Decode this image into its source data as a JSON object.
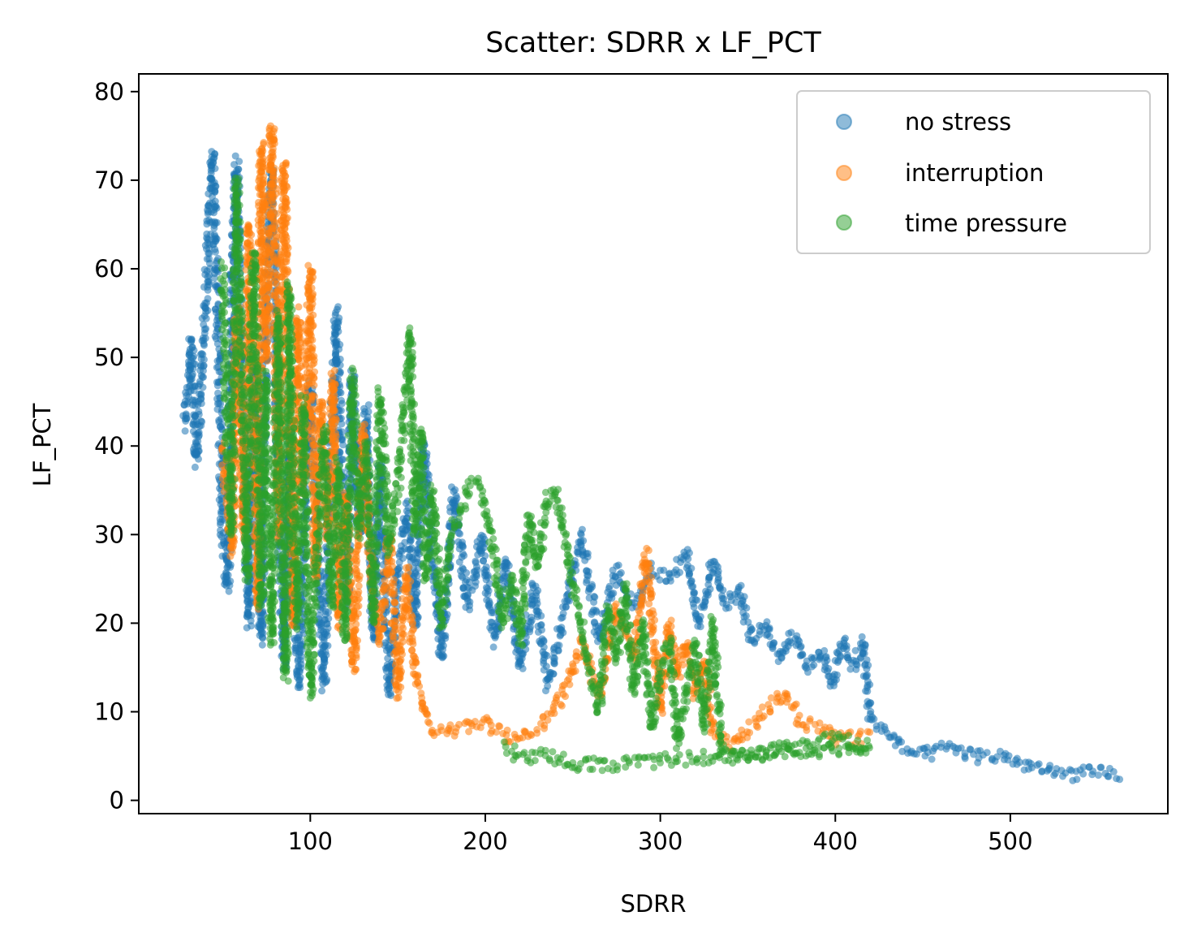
{
  "chart_data": {
    "type": "scatter",
    "title": "Scatter: SDRR x LF_PCT",
    "xlabel": "SDRR",
    "ylabel": "LF_PCT",
    "xlim": [
      2,
      590
    ],
    "ylim": [
      -1.5,
      82
    ],
    "xticks": [
      100,
      200,
      300,
      400,
      500
    ],
    "yticks": [
      0,
      10,
      20,
      30,
      40,
      50,
      60,
      70,
      80
    ],
    "grid": false,
    "legend_position": "top-right",
    "series": [
      {
        "name": "no stress",
        "color": "#1f77b4",
        "path": [
          [
            28,
            42
          ],
          [
            32,
            52
          ],
          [
            35,
            38
          ],
          [
            40,
            55
          ],
          [
            44,
            73
          ],
          [
            46,
            62
          ],
          [
            48,
            45
          ],
          [
            50,
            30
          ],
          [
            53,
            24
          ],
          [
            56,
            65
          ],
          [
            58,
            72
          ],
          [
            60,
            54
          ],
          [
            62,
            40
          ],
          [
            65,
            20
          ],
          [
            68,
            50
          ],
          [
            70,
            35
          ],
          [
            72,
            18
          ],
          [
            75,
            60
          ],
          [
            78,
            71
          ],
          [
            80,
            52
          ],
          [
            82,
            33
          ],
          [
            85,
            15
          ],
          [
            88,
            42
          ],
          [
            90,
            24
          ],
          [
            94,
            13
          ],
          [
            97,
            34
          ],
          [
            100,
            47
          ],
          [
            104,
            28
          ],
          [
            108,
            13
          ],
          [
            112,
            40
          ],
          [
            115,
            55
          ],
          [
            118,
            36
          ],
          [
            121,
            22
          ],
          [
            124,
            48
          ],
          [
            128,
            30
          ],
          [
            132,
            44
          ],
          [
            136,
            18
          ],
          [
            140,
            38
          ],
          [
            145,
            12
          ],
          [
            150,
            25
          ],
          [
            155,
            33
          ],
          [
            160,
            20
          ],
          [
            165,
            40
          ],
          [
            170,
            27
          ],
          [
            175,
            16
          ],
          [
            182,
            35
          ],
          [
            190,
            22
          ],
          [
            198,
            30
          ],
          [
            205,
            18
          ],
          [
            212,
            27
          ],
          [
            220,
            15
          ],
          [
            228,
            24
          ],
          [
            236,
            13
          ],
          [
            245,
            21
          ],
          [
            255,
            30
          ],
          [
            265,
            18
          ],
          [
            275,
            26
          ],
          [
            285,
            22
          ],
          [
            295,
            26
          ],
          [
            305,
            25
          ],
          [
            315,
            28
          ],
          [
            322,
            20
          ],
          [
            330,
            27
          ],
          [
            338,
            22
          ],
          [
            345,
            24
          ],
          [
            352,
            18
          ],
          [
            360,
            20
          ],
          [
            368,
            16
          ],
          [
            376,
            19
          ],
          [
            384,
            15
          ],
          [
            392,
            17
          ],
          [
            398,
            13
          ],
          [
            404,
            18
          ],
          [
            410,
            15
          ],
          [
            416,
            18
          ],
          [
            420,
            9
          ],
          [
            428,
            8
          ],
          [
            438,
            6
          ],
          [
            450,
            5
          ],
          [
            465,
            6
          ],
          [
            480,
            5
          ],
          [
            495,
            5
          ],
          [
            510,
            4
          ],
          [
            525,
            3
          ],
          [
            540,
            3
          ],
          [
            555,
            3
          ],
          [
            563,
            3
          ]
        ]
      },
      {
        "name": "interruption",
        "color": "#ff7f0e",
        "path": [
          [
            50,
            40
          ],
          [
            55,
            28
          ],
          [
            58,
            55
          ],
          [
            62,
            30
          ],
          [
            65,
            65
          ],
          [
            68,
            40
          ],
          [
            70,
            22
          ],
          [
            72,
            74
          ],
          [
            75,
            50
          ],
          [
            78,
            76
          ],
          [
            80,
            60
          ],
          [
            82,
            30
          ],
          [
            85,
            72
          ],
          [
            88,
            45
          ],
          [
            90,
            20
          ],
          [
            93,
            55
          ],
          [
            96,
            35
          ],
          [
            100,
            60
          ],
          [
            103,
            25
          ],
          [
            106,
            45
          ],
          [
            110,
            30
          ],
          [
            113,
            48
          ],
          [
            116,
            20
          ],
          [
            120,
            35
          ],
          [
            125,
            15
          ],
          [
            130,
            42
          ],
          [
            135,
            25
          ],
          [
            140,
            18
          ],
          [
            145,
            30
          ],
          [
            150,
            12
          ],
          [
            155,
            26
          ],
          [
            160,
            14
          ],
          [
            165,
            10
          ],
          [
            170,
            8
          ],
          [
            178,
            8
          ],
          [
            185,
            8
          ],
          [
            195,
            9
          ],
          [
            205,
            8
          ],
          [
            215,
            7
          ],
          [
            225,
            8
          ],
          [
            235,
            9
          ],
          [
            245,
            12
          ],
          [
            255,
            18
          ],
          [
            265,
            12
          ],
          [
            275,
            22
          ],
          [
            285,
            16
          ],
          [
            292,
            28
          ],
          [
            300,
            10
          ],
          [
            305,
            20
          ],
          [
            310,
            14
          ],
          [
            315,
            18
          ],
          [
            320,
            12
          ],
          [
            325,
            16
          ],
          [
            330,
            8
          ],
          [
            340,
            6
          ],
          [
            350,
            8
          ],
          [
            360,
            10
          ],
          [
            370,
            12
          ],
          [
            380,
            9
          ],
          [
            390,
            8
          ],
          [
            400,
            7
          ],
          [
            410,
            7
          ],
          [
            420,
            7
          ]
        ]
      },
      {
        "name": "time pressure",
        "color": "#2ca02c",
        "path": [
          [
            50,
            60
          ],
          [
            52,
            45
          ],
          [
            55,
            30
          ],
          [
            58,
            70
          ],
          [
            60,
            55
          ],
          [
            62,
            38
          ],
          [
            64,
            25
          ],
          [
            66,
            50
          ],
          [
            68,
            62
          ],
          [
            70,
            40
          ],
          [
            72,
            22
          ],
          [
            74,
            48
          ],
          [
            76,
            30
          ],
          [
            78,
            18
          ],
          [
            80,
            40
          ],
          [
            82,
            55
          ],
          [
            84,
            28
          ],
          [
            86,
            14
          ],
          [
            88,
            58
          ],
          [
            90,
            36
          ],
          [
            93,
            20
          ],
          [
            96,
            45
          ],
          [
            100,
            12
          ],
          [
            104,
            30
          ],
          [
            108,
            42
          ],
          [
            112,
            22
          ],
          [
            116,
            38
          ],
          [
            120,
            18
          ],
          [
            124,
            48
          ],
          [
            128,
            30
          ],
          [
            132,
            40
          ],
          [
            136,
            20
          ],
          [
            140,
            46
          ],
          [
            145,
            28
          ],
          [
            150,
            35
          ],
          [
            154,
            45
          ],
          [
            157,
            53
          ],
          [
            160,
            30
          ],
          [
            163,
            42
          ],
          [
            166,
            25
          ],
          [
            170,
            35
          ],
          [
            175,
            20
          ],
          [
            180,
            30
          ],
          [
            185,
            32
          ],
          [
            190,
            35
          ],
          [
            195,
            36
          ],
          [
            200,
            33
          ],
          [
            205,
            28
          ],
          [
            210,
            20
          ],
          [
            215,
            25
          ],
          [
            220,
            18
          ],
          [
            225,
            32
          ],
          [
            230,
            26
          ],
          [
            235,
            34
          ],
          [
            240,
            35
          ],
          [
            245,
            30
          ],
          [
            250,
            24
          ],
          [
            255,
            20
          ],
          [
            260,
            14
          ],
          [
            265,
            10
          ],
          [
            270,
            22
          ],
          [
            275,
            16
          ],
          [
            280,
            24
          ],
          [
            285,
            12
          ],
          [
            290,
            20
          ],
          [
            295,
            8
          ],
          [
            300,
            15
          ],
          [
            305,
            18
          ],
          [
            310,
            6
          ],
          [
            315,
            12
          ],
          [
            320,
            18
          ],
          [
            325,
            8
          ],
          [
            330,
            20
          ],
          [
            335,
            5
          ],
          [
            345,
            5
          ],
          [
            355,
            5
          ],
          [
            365,
            6
          ],
          [
            375,
            6
          ],
          [
            385,
            6
          ],
          [
            395,
            7
          ],
          [
            405,
            7
          ],
          [
            415,
            6
          ],
          [
            420,
            6
          ],
          [
            260,
            4
          ],
          [
            250,
            4
          ],
          [
            240,
            5
          ],
          [
            230,
            5
          ],
          [
            220,
            5
          ],
          [
            210,
            6
          ]
        ]
      }
    ]
  }
}
